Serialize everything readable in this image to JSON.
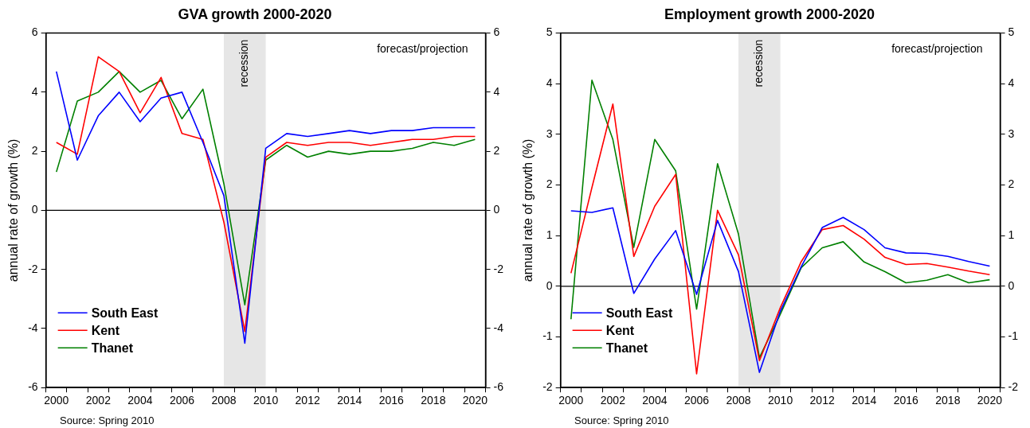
{
  "chart_data": [
    {
      "type": "line",
      "title": "GVA growth 2000-2020",
      "ylabel": "annual rate of growth (%)",
      "categories": [
        "2000",
        null,
        "2002",
        null,
        "2004",
        null,
        "2006",
        null,
        "2008",
        null,
        "2010",
        null,
        "2012",
        null,
        "2014",
        null,
        "2016",
        null,
        "2018",
        null,
        "2020"
      ],
      "series": [
        {
          "name": "South East",
          "color": "#0000ff",
          "values": [
            4.7,
            1.7,
            3.2,
            4.0,
            3.0,
            3.8,
            4.0,
            2.3,
            0.5,
            -4.5,
            2.1,
            2.6,
            2.5,
            2.6,
            2.7,
            2.6,
            2.7,
            2.7,
            2.8,
            2.8,
            2.8
          ]
        },
        {
          "name": "Kent",
          "color": "#ff0000",
          "values": [
            2.3,
            1.9,
            5.2,
            4.7,
            3.3,
            4.5,
            2.6,
            2.4,
            -0.4,
            -4.1,
            1.8,
            2.3,
            2.2,
            2.3,
            2.3,
            2.2,
            2.3,
            2.4,
            2.4,
            2.5,
            2.5
          ]
        },
        {
          "name": "Thanet",
          "color": "#008000",
          "values": [
            1.3,
            3.7,
            4.0,
            4.7,
            4.0,
            4.4,
            3.1,
            4.1,
            0.9,
            -3.2,
            1.7,
            2.2,
            1.8,
            2.0,
            1.9,
            2.0,
            2.0,
            2.1,
            2.3,
            2.2,
            2.4
          ]
        }
      ],
      "ylim": [
        -6,
        6
      ],
      "yticks": [
        -6,
        -4,
        -2,
        0,
        2,
        4,
        6
      ],
      "y2lim": [
        -6,
        6
      ],
      "y2ticks": [
        -6,
        -4,
        -2,
        0,
        2,
        4,
        6
      ],
      "ref_lines": [
        {
          "axis": "y",
          "value": 0,
          "color": "#000000"
        }
      ],
      "bands": [
        {
          "axis": "x",
          "from": "2008",
          "to": "2010",
          "label": "recession",
          "color": "#e6e6e6"
        }
      ],
      "annotations": [
        "forecast/projection",
        "Source: Spring 2010"
      ],
      "legend": "bottom left",
      "grid": false,
      "marker": "none",
      "line_style": "solid"
    },
    {
      "type": "line",
      "title": "Employment growth 2000-2020",
      "ylabel": "annual rate of growth (%)",
      "categories": [
        "2000",
        null,
        "2002",
        null,
        "2004",
        null,
        "2006",
        null,
        "2008",
        null,
        "2010",
        null,
        "2012",
        null,
        "2014",
        null,
        "2016",
        null,
        "2018",
        null,
        "2020"
      ],
      "series": [
        {
          "name": "South East",
          "color": "#0000ff",
          "values": [
            1.49,
            1.46,
            1.55,
            -0.14,
            0.54,
            1.1,
            -0.16,
            1.3,
            0.29,
            -1.7,
            -0.49,
            0.39,
            1.16,
            1.36,
            1.12,
            0.76,
            0.66,
            0.65,
            0.59,
            0.49,
            0.4
          ]
        },
        {
          "name": "Kent",
          "color": "#ff0000",
          "values": [
            0.26,
            1.95,
            3.6,
            0.59,
            1.58,
            2.21,
            -1.73,
            1.5,
            0.62,
            -1.47,
            -0.42,
            0.49,
            1.12,
            1.2,
            0.93,
            0.57,
            0.43,
            0.45,
            0.38,
            0.3,
            0.23
          ]
        },
        {
          "name": "Thanet",
          "color": "#008000",
          "values": [
            -0.65,
            4.07,
            2.9,
            0.77,
            2.9,
            2.28,
            -0.45,
            2.42,
            1.03,
            -1.41,
            -0.55,
            0.37,
            0.76,
            0.88,
            0.48,
            0.29,
            0.07,
            0.12,
            0.23,
            0.07,
            0.13
          ]
        }
      ],
      "ylim": [
        -2,
        5
      ],
      "yticks": [
        -2,
        -1,
        0,
        1,
        2,
        3,
        4,
        5
      ],
      "y2lim": [
        -2,
        5
      ],
      "y2ticks": [
        -2,
        -1,
        0,
        1,
        2,
        3,
        4,
        5
      ],
      "ref_lines": [
        {
          "axis": "y",
          "value": 0,
          "color": "#000000"
        }
      ],
      "bands": [
        {
          "axis": "x",
          "from": "2008",
          "to": "2010",
          "label": "recession",
          "color": "#e6e6e6"
        }
      ],
      "annotations": [
        "forecast/projection",
        "Source: Spring 2010"
      ],
      "legend": "bottom left",
      "grid": false,
      "marker": "none",
      "line_style": "solid"
    }
  ]
}
